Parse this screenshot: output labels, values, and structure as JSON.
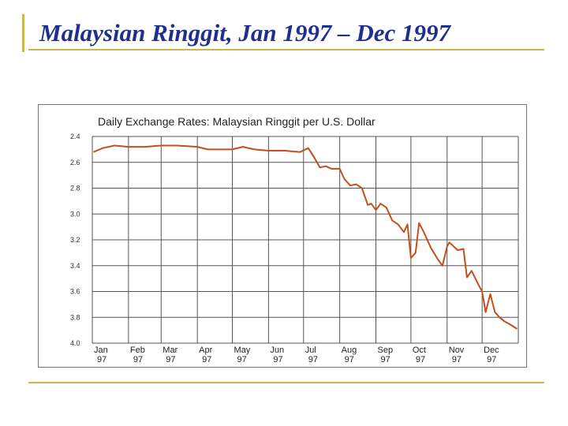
{
  "slide": {
    "title": "Malaysian Ringgit, Jan 1997 – Dec 1997"
  },
  "colors": {
    "title": "#1f2f8f",
    "accent": "#c8b84a",
    "line": "#c0501e",
    "grid": "#555555"
  },
  "chart_data": {
    "type": "line",
    "title": "Daily Exchange Rates: Malaysian Ringgit per U.S. Dollar",
    "xlabel": "",
    "ylabel": "",
    "y_inverted": true,
    "ylim": [
      2.4,
      4.0
    ],
    "y_ticks": [
      "2.4",
      "2.6",
      "2.8",
      "3.0",
      "3.2",
      "3.4",
      "3.6",
      "3.8",
      "4.0"
    ],
    "x_ticks": [
      {
        "month": "Jan",
        "year": "97"
      },
      {
        "month": "Feb",
        "year": "97"
      },
      {
        "month": "Mar",
        "year": "97"
      },
      {
        "month": "Apr",
        "year": "97"
      },
      {
        "month": "May",
        "year": "97"
      },
      {
        "month": "Jun",
        "year": "97"
      },
      {
        "month": "Jul",
        "year": "97"
      },
      {
        "month": "Aug",
        "year": "97"
      },
      {
        "month": "Sep",
        "year": "97"
      },
      {
        "month": "Oct",
        "year": "97"
      },
      {
        "month": "Nov",
        "year": "97"
      },
      {
        "month": "Dec",
        "year": "97"
      }
    ],
    "grid": true,
    "series": [
      {
        "name": "",
        "points": [
          [
            "1997-01-02",
            2.52
          ],
          [
            "1997-01-10",
            2.49
          ],
          [
            "1997-01-20",
            2.47
          ],
          [
            "1997-02-01",
            2.48
          ],
          [
            "1997-02-15",
            2.48
          ],
          [
            "1997-03-01",
            2.47
          ],
          [
            "1997-03-15",
            2.47
          ],
          [
            "1997-04-01",
            2.48
          ],
          [
            "1997-04-10",
            2.5
          ],
          [
            "1997-04-20",
            2.5
          ],
          [
            "1997-05-01",
            2.5
          ],
          [
            "1997-05-10",
            2.48
          ],
          [
            "1997-05-20",
            2.5
          ],
          [
            "1997-06-01",
            2.51
          ],
          [
            "1997-06-15",
            2.51
          ],
          [
            "1997-06-28",
            2.52
          ],
          [
            "1997-07-05",
            2.49
          ],
          [
            "1997-07-10",
            2.56
          ],
          [
            "1997-07-15",
            2.64
          ],
          [
            "1997-07-20",
            2.63
          ],
          [
            "1997-07-25",
            2.65
          ],
          [
            "1997-08-01",
            2.65
          ],
          [
            "1997-08-05",
            2.73
          ],
          [
            "1997-08-10",
            2.78
          ],
          [
            "1997-08-15",
            2.77
          ],
          [
            "1997-08-20",
            2.8
          ],
          [
            "1997-08-25",
            2.93
          ],
          [
            "1997-08-28",
            2.92
          ],
          [
            "1997-09-01",
            2.97
          ],
          [
            "1997-09-05",
            2.92
          ],
          [
            "1997-09-10",
            2.95
          ],
          [
            "1997-09-15",
            3.05
          ],
          [
            "1997-09-20",
            3.08
          ],
          [
            "1997-09-25",
            3.14
          ],
          [
            "1997-09-28",
            3.08
          ],
          [
            "1997-10-01",
            3.34
          ],
          [
            "1997-10-05",
            3.3
          ],
          [
            "1997-10-08",
            3.07
          ],
          [
            "1997-10-12",
            3.14
          ],
          [
            "1997-10-18",
            3.26
          ],
          [
            "1997-10-24",
            3.35
          ],
          [
            "1997-10-28",
            3.4
          ],
          [
            "1997-11-01",
            3.25
          ],
          [
            "1997-11-03",
            3.22
          ],
          [
            "1997-11-10",
            3.28
          ],
          [
            "1997-11-15",
            3.27
          ],
          [
            "1997-11-18",
            3.49
          ],
          [
            "1997-11-22",
            3.44
          ],
          [
            "1997-11-28",
            3.55
          ],
          [
            "1997-12-01",
            3.6
          ],
          [
            "1997-12-04",
            3.76
          ],
          [
            "1997-12-08",
            3.62
          ],
          [
            "1997-12-12",
            3.76
          ],
          [
            "1997-12-16",
            3.8
          ],
          [
            "1997-12-20",
            3.83
          ],
          [
            "1997-12-24",
            3.85
          ],
          [
            "1997-12-31",
            3.89
          ]
        ]
      }
    ]
  }
}
